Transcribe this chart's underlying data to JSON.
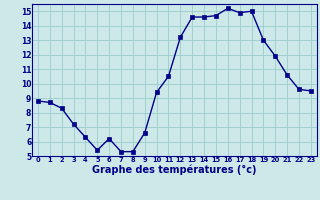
{
  "hours": [
    0,
    1,
    2,
    3,
    4,
    5,
    6,
    7,
    8,
    9,
    10,
    11,
    12,
    13,
    14,
    15,
    16,
    17,
    18,
    19,
    20,
    21,
    22,
    23
  ],
  "temperatures": [
    8.8,
    8.7,
    8.3,
    7.2,
    6.3,
    5.4,
    6.2,
    5.3,
    5.3,
    6.6,
    9.4,
    10.5,
    13.2,
    14.6,
    14.6,
    14.7,
    15.2,
    14.9,
    15.0,
    13.0,
    11.9,
    10.6,
    9.6,
    9.5
  ],
  "line_color": "#00008b",
  "marker": "s",
  "marker_size": 2.5,
  "bg_color": "#cce8e8",
  "grid_color": "#99cccc",
  "xlabel": "Graphe des températures (°c)",
  "xlabel_color": "#00008b",
  "tick_color": "#00008b",
  "ylim": [
    5,
    15.5
  ],
  "yticks": [
    5,
    6,
    7,
    8,
    9,
    10,
    11,
    12,
    13,
    14,
    15
  ],
  "xlim": [
    -0.5,
    23.5
  ],
  "xticks": [
    0,
    1,
    2,
    3,
    4,
    5,
    6,
    7,
    8,
    9,
    10,
    11,
    12,
    13,
    14,
    15,
    16,
    17,
    18,
    19,
    20,
    21,
    22,
    23
  ],
  "xtick_labels": [
    "0",
    "1",
    "2",
    "3",
    "4",
    "5",
    "6",
    "7",
    "8",
    "9",
    "10",
    "11",
    "12",
    "13",
    "14",
    "15",
    "16",
    "17",
    "18",
    "19",
    "20",
    "21",
    "22",
    "23"
  ]
}
